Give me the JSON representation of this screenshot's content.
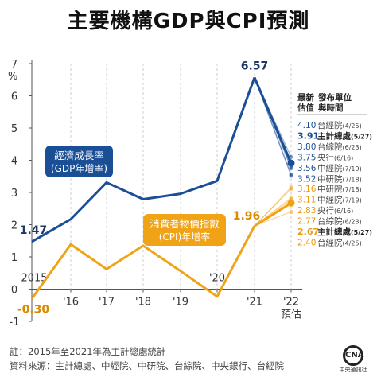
{
  "title": "主要機構GDP與CPI預測",
  "chart_data": {
    "type": "line",
    "y_unit": "%",
    "ylim": [
      -1,
      7
    ],
    "y_ticks": [
      "-1",
      "0",
      "1",
      "2",
      "3",
      "4",
      "5",
      "6",
      "7"
    ],
    "x_labels": [
      "2015",
      "'16",
      "'17",
      "'18",
      "'19",
      "'20",
      "'21",
      "'22"
    ],
    "x_sub_label": "預估",
    "series": [
      {
        "name": "經濟成長率",
        "subname": "(GDP年增率)",
        "color": "#1a4f96",
        "values": [
          1.47,
          2.17,
          3.31,
          2.79,
          2.96,
          3.36,
          6.57
        ],
        "start_label": "1.47",
        "peak_label": "6.57"
      },
      {
        "name": "消費者物價指數",
        "subname": "(CPI)年增率",
        "color": "#f0a316",
        "values": [
          -0.3,
          1.39,
          0.62,
          1.35,
          0.56,
          -0.23,
          1.96
        ],
        "start_label": "-0.30",
        "peak_label": "1.96"
      }
    ],
    "gdp_forecasts": [
      {
        "value": 4.1,
        "label": "4.10",
        "org": "台經院",
        "date": "(4/25)",
        "bold": false
      },
      {
        "value": 3.91,
        "label": "3.91",
        "org": "主計總處",
        "date": "(5/27)",
        "bold": true
      },
      {
        "value": 3.8,
        "label": "3.80",
        "org": "台綜院",
        "date": "(6/23)",
        "bold": false
      },
      {
        "value": 3.75,
        "label": "3.75",
        "org": "央行",
        "date": "(6/16)",
        "bold": false
      },
      {
        "value": 3.56,
        "label": "3.56",
        "org": "中經院",
        "date": "(7/19)",
        "bold": false
      },
      {
        "value": 3.52,
        "label": "3.52",
        "org": "中研院",
        "date": "(7/18)",
        "bold": false
      }
    ],
    "cpi_forecasts": [
      {
        "value": 3.16,
        "label": "3.16",
        "org": "中研院",
        "date": "(7/18)",
        "bold": false
      },
      {
        "value": 3.11,
        "label": "3.11",
        "org": "中經院",
        "date": "(7/19)",
        "bold": false
      },
      {
        "value": 2.83,
        "label": "2.83",
        "org": "央行",
        "date": "(6/16)",
        "bold": false
      },
      {
        "value": 2.77,
        "label": "2.77",
        "org": "台綜院",
        "date": "(6/23)",
        "bold": false
      },
      {
        "value": 2.67,
        "label": "2.67",
        "org": "主計總處",
        "date": "(5/27)",
        "bold": true
      },
      {
        "value": 2.4,
        "label": "2.40",
        "org": "台經院",
        "date": "(4/25)",
        "bold": false
      }
    ],
    "forecast_header": {
      "col1_line1": "最新",
      "col1_line2": "估值",
      "col2_line1": "發布單位",
      "col2_line2": "與時間"
    },
    "gdp_forecast_color": "#1a4f96",
    "cpi_forecast_color": "#f0a316"
  },
  "footer": {
    "note": "註：2015年至2021年為主計總處統計",
    "source": "資料來源：主計總處、中經院、中研院、台綜院、中央銀行、台經院",
    "logo_text": "中央通訊社",
    "logo_mark": "CNA"
  }
}
